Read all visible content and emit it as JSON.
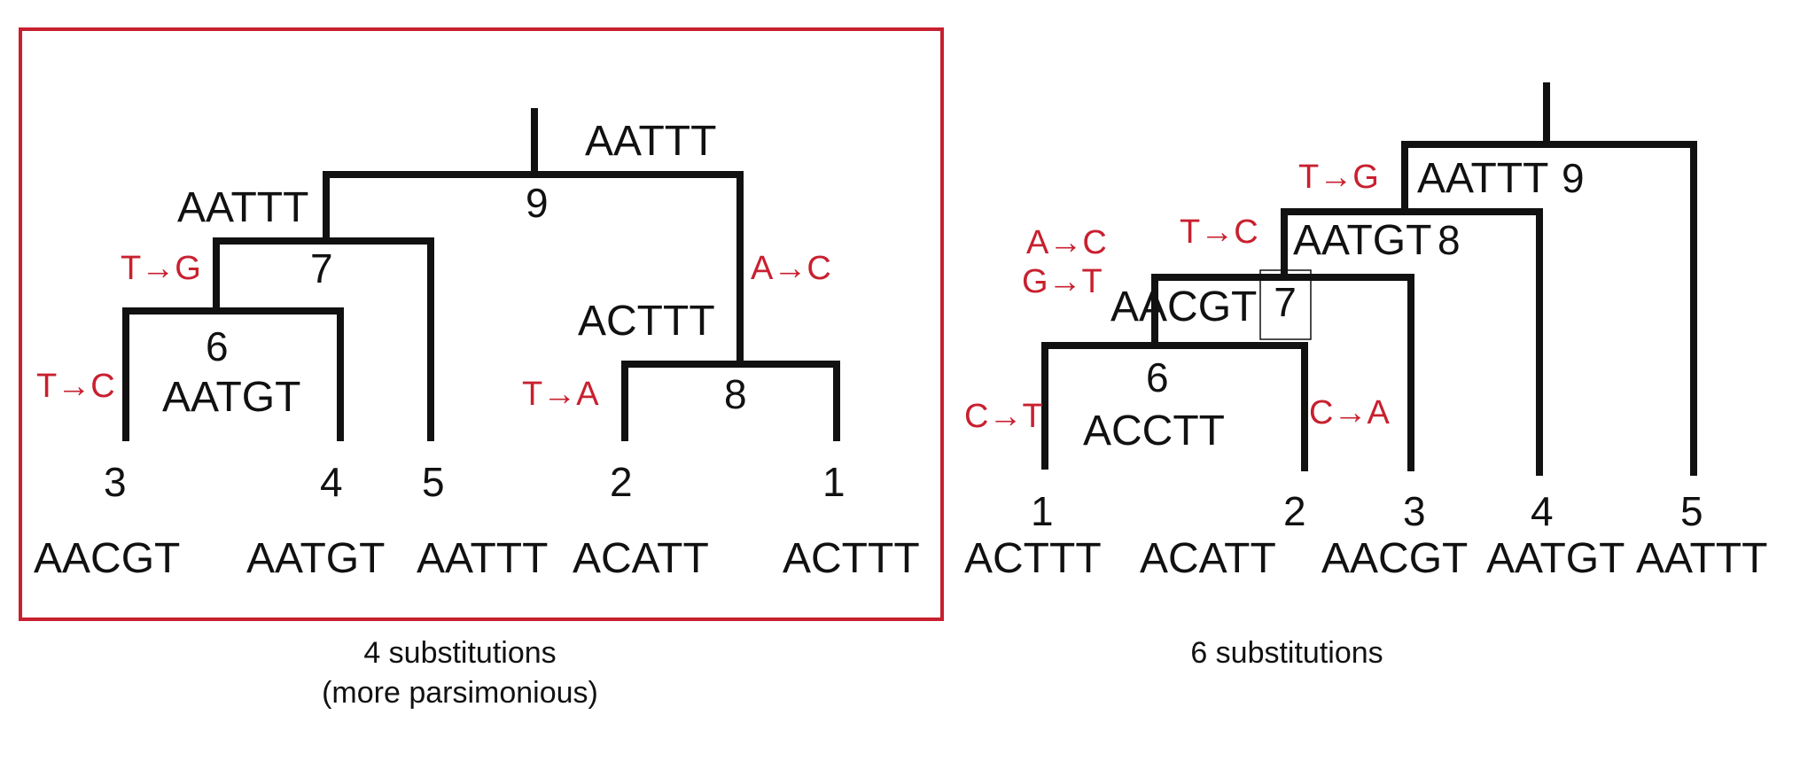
{
  "colors": {
    "highlight_box": "#c8202f",
    "substitution": "#c8202f",
    "tree": "#111111"
  },
  "left_tree": {
    "leaves": [
      {
        "num": "3",
        "seq": "AACGT"
      },
      {
        "num": "4",
        "seq": "AATGT"
      },
      {
        "num": "5",
        "seq": "AATTT"
      },
      {
        "num": "2",
        "seq": "ACATT"
      },
      {
        "num": "1",
        "seq": "ACTTT"
      }
    ],
    "nodes": {
      "n9": {
        "num": "9",
        "seq": "AATTT"
      },
      "n7": {
        "num": "7",
        "seq": "AATTT"
      },
      "n6": {
        "num": "6",
        "seq": "AATGT"
      },
      "n8": {
        "num": "8",
        "seq": "ACTTT"
      }
    },
    "subs": [
      "T→G",
      "T→C",
      "A→C",
      "T→A"
    ],
    "caption_line1": "4 substitutions",
    "caption_line2": "(more parsimonious)"
  },
  "right_tree": {
    "leaves": [
      {
        "num": "1",
        "seq": "ACTTT"
      },
      {
        "num": "2",
        "seq": "ACATT"
      },
      {
        "num": "3",
        "seq": "AACGT"
      },
      {
        "num": "4",
        "seq": "AATGT"
      },
      {
        "num": "5",
        "seq": "AATTT"
      }
    ],
    "nodes": {
      "n9": {
        "num": "9",
        "seq": "AATTT"
      },
      "n8": {
        "num": "8",
        "seq": "AATGT"
      },
      "n7": {
        "num": "7",
        "seq": "AACGT"
      },
      "n6": {
        "num": "6",
        "seq": "ACCTT"
      }
    },
    "subs": [
      "T→G",
      "T→C",
      "A→C",
      "G→T",
      "C→T",
      "C→A"
    ],
    "caption": "6 substitutions"
  }
}
